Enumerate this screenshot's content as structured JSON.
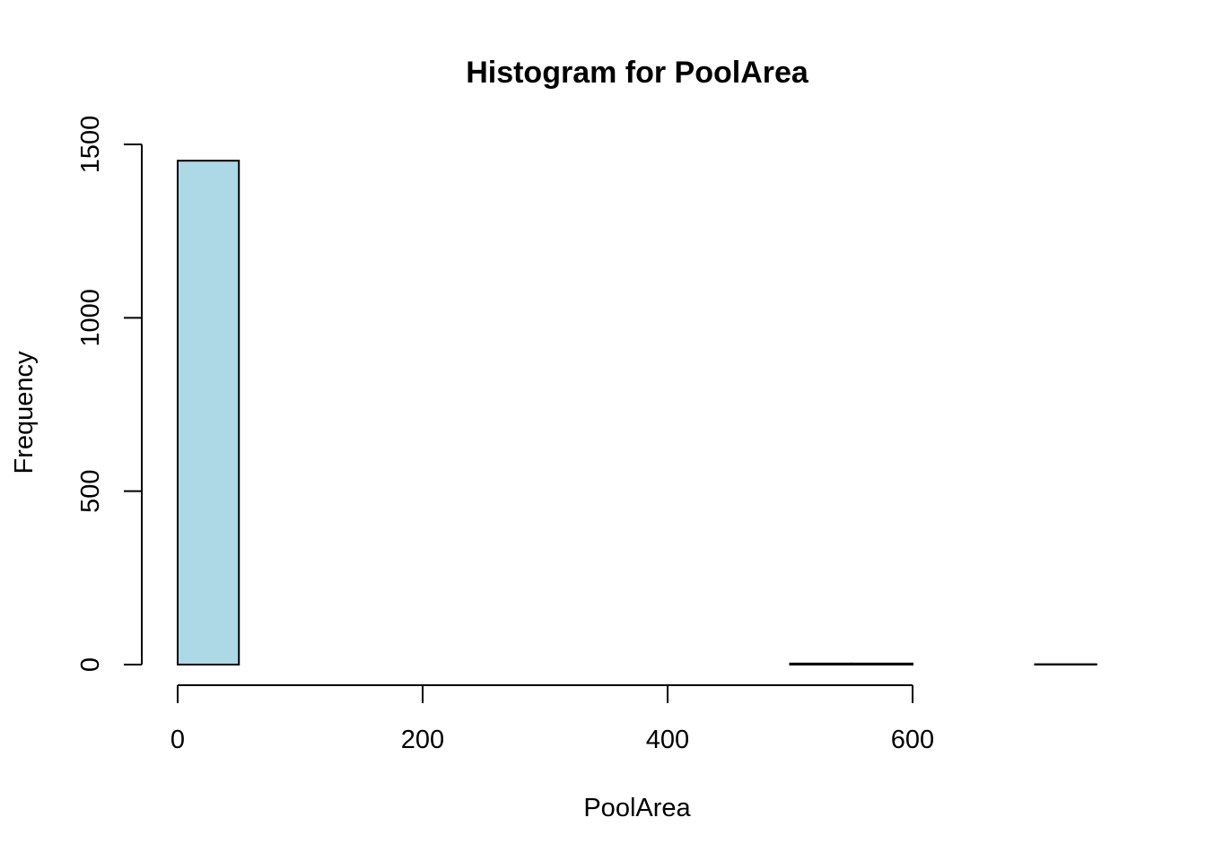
{
  "chart_data": {
    "type": "bar",
    "title": "Histogram for PoolArea",
    "xlabel": "PoolArea",
    "ylabel": "Frequency",
    "bar_color": "#ADD8E6",
    "bins": [
      {
        "start": 0,
        "end": 50,
        "count": 1453
      },
      {
        "start": 50,
        "end": 100,
        "count": 0
      },
      {
        "start": 100,
        "end": 150,
        "count": 0
      },
      {
        "start": 150,
        "end": 200,
        "count": 0
      },
      {
        "start": 200,
        "end": 250,
        "count": 0
      },
      {
        "start": 250,
        "end": 300,
        "count": 0
      },
      {
        "start": 300,
        "end": 350,
        "count": 0
      },
      {
        "start": 350,
        "end": 400,
        "count": 0
      },
      {
        "start": 400,
        "end": 450,
        "count": 0
      },
      {
        "start": 450,
        "end": 500,
        "count": 0
      },
      {
        "start": 500,
        "end": 550,
        "count": 3
      },
      {
        "start": 550,
        "end": 600,
        "count": 3
      },
      {
        "start": 600,
        "end": 650,
        "count": 0
      },
      {
        "start": 650,
        "end": 700,
        "count": 0
      },
      {
        "start": 700,
        "end": 750,
        "count": 1
      }
    ],
    "xlim": [
      0,
      750
    ],
    "ylim": [
      0,
      1500
    ],
    "x_ticks": [
      0,
      200,
      400,
      600
    ],
    "y_ticks": [
      0,
      500,
      1000,
      1500
    ],
    "grid": false
  }
}
